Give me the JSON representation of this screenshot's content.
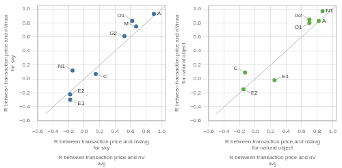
{
  "chart_data": [
    {
      "type": "scatter",
      "xlabel": "R between transaction price and nVavg\nfor sky",
      "ylabel": "R between transaction price and nVmax\nfor sky",
      "annotations": [
        "R between transaction price and nV",
        "avg"
      ],
      "xlim": [
        -0.6,
        1.05
      ],
      "ylim": [
        -0.6,
        1.05
      ],
      "xticks": [
        {
          "value": -0.6,
          "label": "−0.6"
        },
        {
          "value": -0.4,
          "label": "−0.4"
        },
        {
          "value": -0.2,
          "label": "−0.2"
        },
        {
          "value": 0,
          "label": "0.0"
        },
        0.2,
        0.4,
        0.6,
        0.8,
        {
          "value": 1.0,
          "label": "1.0"
        }
      ],
      "yticks": [
        {
          "value": -0.6,
          "label": "−0.6"
        },
        {
          "value": -0.4,
          "label": "−0.4"
        },
        {
          "value": -0.2,
          "label": "−0.2"
        },
        {
          "value": 0,
          "label": "0.0"
        },
        0.2,
        0.4,
        0.6,
        0.8,
        {
          "value": 1.0,
          "label": "1.0"
        }
      ],
      "grid": true,
      "series": [
        {
          "type": "line",
          "color": "#b8b8b8",
          "x": [
            -0.5,
            1.05
          ],
          "values": [
            -0.5,
            1.05
          ]
        },
        {
          "type": "scatter",
          "color": "#3A6EA5",
          "x": [
            0.9,
            0.62,
            0.67,
            0.52,
            -0.15,
            0.15,
            -0.18,
            -0.18
          ],
          "values": [
            0.93,
            0.83,
            0.75,
            0.61,
            0.12,
            0.07,
            -0.22,
            -0.3
          ],
          "labels": [
            "A",
            "O1",
            "M",
            "G2",
            "N1",
            "C",
            "E2",
            "E1"
          ]
        }
      ]
    },
    {
      "type": "scatter",
      "xlabel": "R between transaction price and nVavg\nfor natural object",
      "ylabel": "R between transaction price and nVmax\nfor natural object",
      "annotations": [
        "R between transaction price and nV",
        "avg"
      ],
      "xlim": [
        -0.6,
        1.05
      ],
      "ylim": [
        -0.6,
        1.05
      ],
      "xticks": [
        {
          "value": -0.6,
          "label": "−0.6"
        },
        {
          "value": -0.4,
          "label": "−0.4"
        },
        {
          "value": -0.2,
          "label": "−0.2"
        },
        {
          "value": 0,
          "label": "0.0"
        },
        0.2,
        0.4,
        0.6,
        0.8,
        {
          "value": 1.0,
          "label": "1.0"
        }
      ],
      "yticks": [
        {
          "value": -0.6,
          "label": "−0.6"
        },
        {
          "value": -0.4,
          "label": "−0.4"
        },
        {
          "value": -0.2,
          "label": "−0.2"
        },
        {
          "value": 0,
          "label": "0.0"
        },
        0.2,
        0.4,
        0.6,
        0.8,
        {
          "value": 1.0,
          "label": "1.0"
        }
      ],
      "grid": true,
      "series": [
        {
          "type": "line",
          "color": "#b8b8b8",
          "x": [
            -0.5,
            1.05
          ],
          "values": [
            -0.5,
            1.05
          ]
        },
        {
          "type": "scatter",
          "color": "#5DAD45",
          "x": [
            0.87,
            0.7,
            0.7,
            0.82,
            -0.13,
            0.25,
            -0.15
          ],
          "values": [
            0.97,
            0.85,
            0.8,
            0.83,
            0.09,
            -0.02,
            -0.15
          ],
          "labels": [
            "N1",
            "G2",
            "O1",
            "A",
            "C",
            "E1",
            "E2"
          ]
        }
      ]
    }
  ]
}
